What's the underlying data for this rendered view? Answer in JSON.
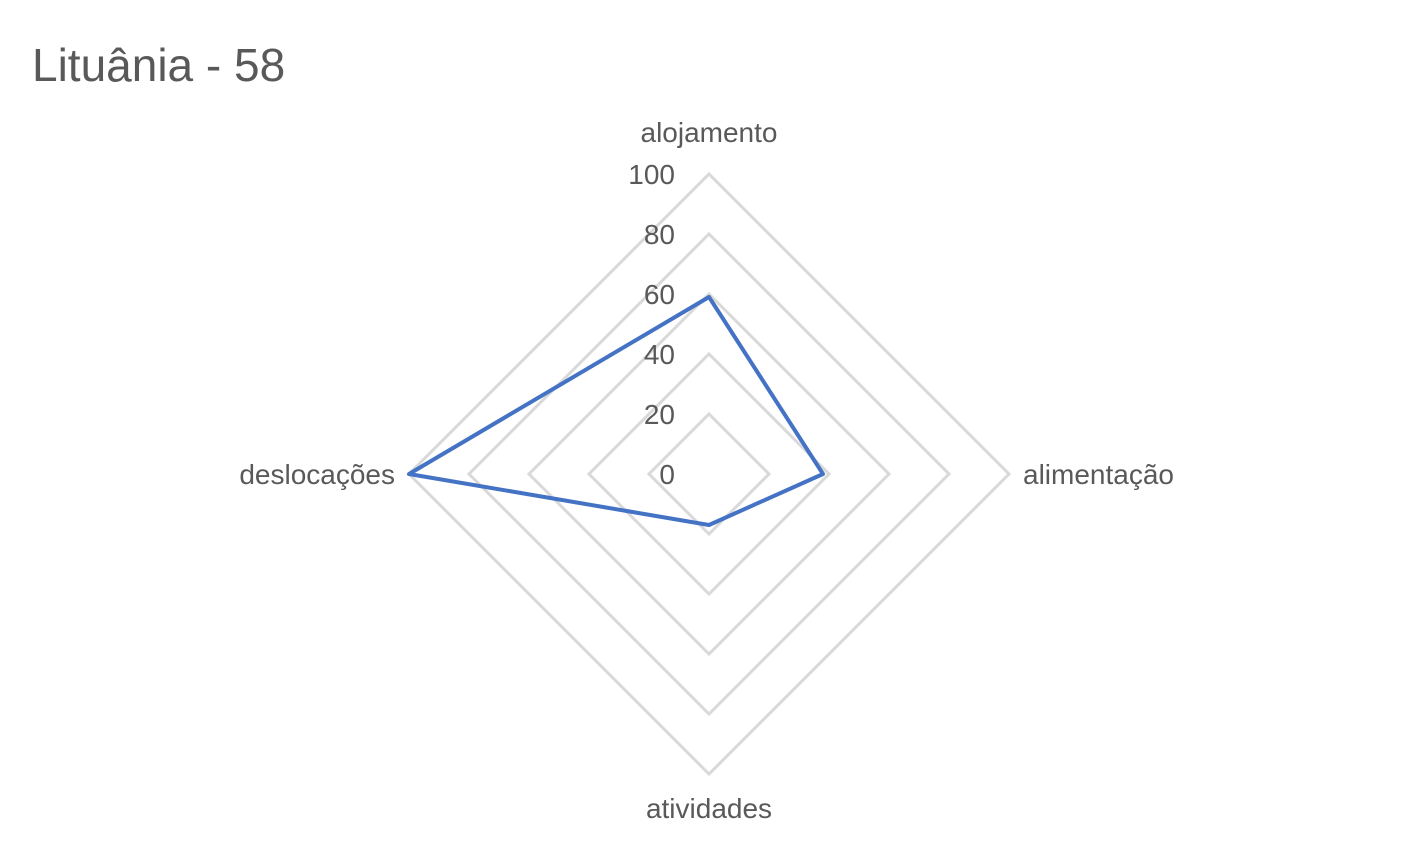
{
  "chart_data": {
    "type": "radar",
    "title": "Lituânia - 58",
    "categories": [
      "alojamento",
      "alimentação",
      "atividades",
      "deslocações"
    ],
    "series": [
      {
        "values": [
          59,
          38,
          17,
          100
        ],
        "color": "#4472c4"
      }
    ],
    "r_ticks": [
      "0",
      "20",
      "40",
      "60",
      "80",
      "100"
    ],
    "r_range": [
      0,
      100
    ],
    "grid": true,
    "grid_color": "#d9d9d9",
    "legend": "none"
  }
}
